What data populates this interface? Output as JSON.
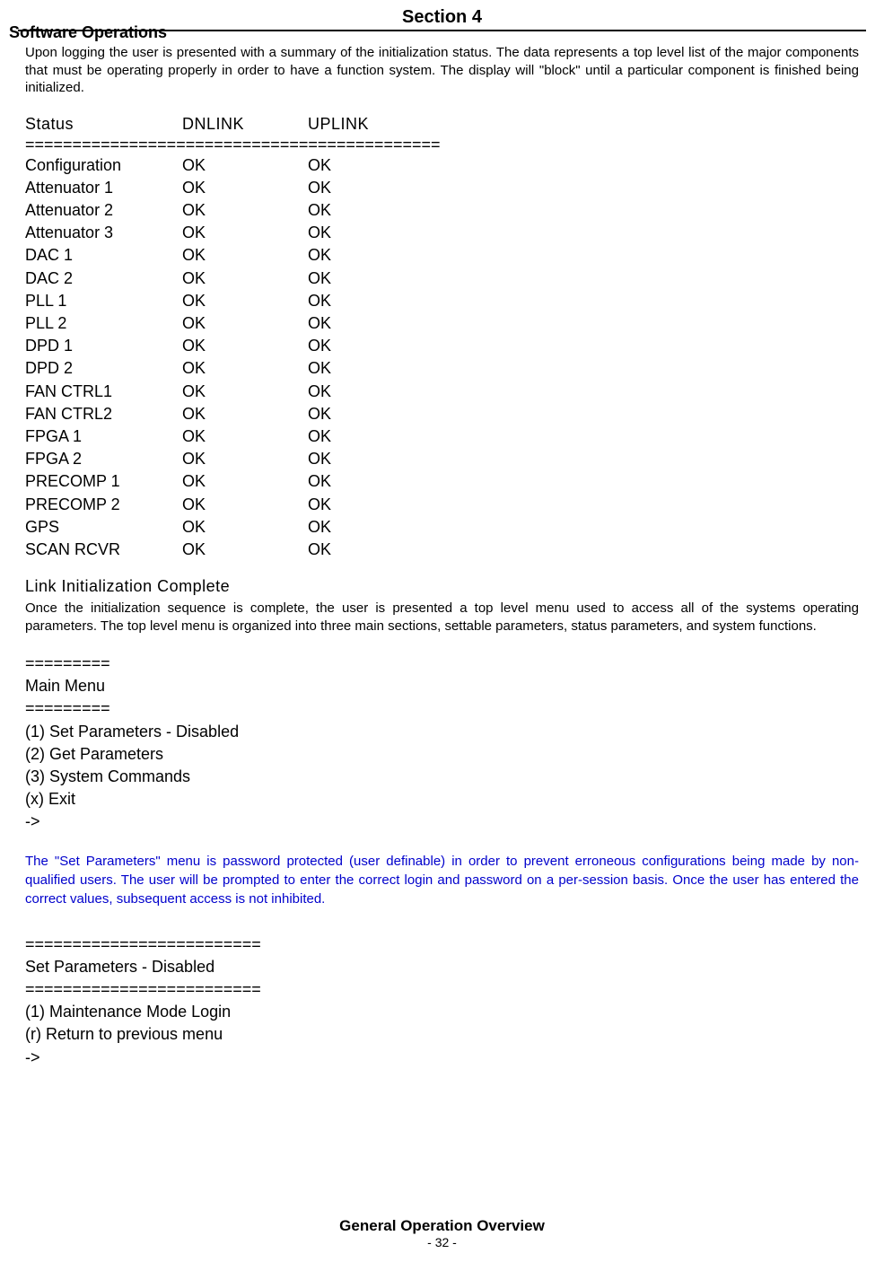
{
  "header": {
    "section_title": "Section 4",
    "subsection": "Software Operations"
  },
  "intro": "Upon logging the user is presented with a summary of the initialization status. The data represents a top level list of the major components that must be operating properly in order to have a function system. The display will \"block\" until a particular component is finished being initialized.",
  "status_table": {
    "header_status": "Status",
    "header_dnlink": "DNLINK",
    "header_uplink": "UPLINK",
    "divider": "============================================",
    "rows": [
      {
        "name": "Configuration",
        "dn": "OK",
        "up": "OK"
      },
      {
        "name": "Attenuator 1",
        "dn": "OK",
        "up": "OK"
      },
      {
        "name": "Attenuator 2",
        "dn": "OK",
        "up": "OK"
      },
      {
        "name": "Attenuator 3",
        "dn": "OK",
        "up": "OK"
      },
      {
        "name": "DAC 1",
        "dn": "OK",
        "up": "OK"
      },
      {
        "name": "DAC 2",
        "dn": "OK",
        "up": "OK"
      },
      {
        "name": "PLL 1",
        "dn": "OK",
        "up": "OK"
      },
      {
        "name": "PLL 2",
        "dn": "OK",
        "up": "OK"
      },
      {
        "name": "DPD 1",
        "dn": "OK",
        "up": "OK"
      },
      {
        "name": "DPD 2",
        "dn": "OK",
        "up": "OK"
      },
      {
        "name": "FAN CTRL1",
        "dn": "OK",
        "up": "OK"
      },
      {
        "name": "FAN CTRL2",
        "dn": "OK",
        "up": "OK"
      },
      {
        "name": "FPGA 1",
        "dn": "OK",
        "up": "OK"
      },
      {
        "name": "FPGA 2",
        "dn": "OK",
        "up": "OK"
      },
      {
        "name": "PRECOMP 1",
        "dn": "OK",
        "up": "OK"
      },
      {
        "name": "PRECOMP 2",
        "dn": "OK",
        "up": "OK"
      },
      {
        "name": "GPS",
        "dn": "OK",
        "up": "OK"
      },
      {
        "name": "SCAN RCVR",
        "dn": "OK",
        "up": "OK"
      }
    ]
  },
  "link_complete": "Link Initialization Complete",
  "post_init_text": "Once the initialization sequence is complete, the user is presented a top level menu used to access all of the systems operating parameters. The top level menu is organized into three main sections, settable parameters, status parameters, and system functions.",
  "main_menu": {
    "divider": "=========",
    "title": "Main Menu",
    "items": [
      "(1) Set Parameters - Disabled",
      "(2) Get Parameters",
      "(3) System Commands",
      "(x) Exit",
      "->"
    ]
  },
  "blue_note": "The \"Set Parameters\" menu is password protected (user definable) in order to prevent erroneous configurations being made by non-qualified users. The user will be prompted to enter the correct login and password on a per-session basis. Once the user has entered the correct values, subsequent access is not inhibited.",
  "set_params_menu": {
    "divider": "=========================",
    "title": "Set Parameters - Disabled",
    "items": [
      "(1) Maintenance Mode Login",
      "(r) Return to previous menu",
      "->"
    ]
  },
  "footer": {
    "title": "General Operation Overview",
    "page": "- 32 -"
  },
  "colors": {
    "text": "#000000",
    "link_blue": "#0000cc",
    "background": "#ffffff",
    "rule": "#000000"
  },
  "typography": {
    "body_font": "Arial, Helvetica, sans-serif",
    "mono_like_font": "Segoe UI, Tahoma, sans-serif",
    "section_title_size": 20,
    "body_size": 15,
    "table_size": 18
  }
}
